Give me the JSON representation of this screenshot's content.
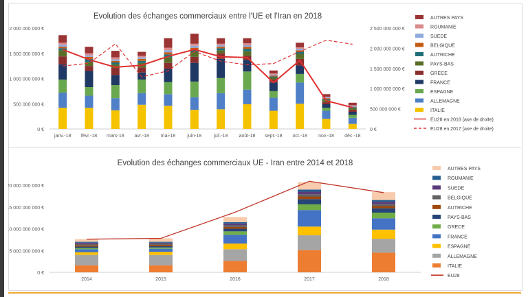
{
  "chart_data": [
    {
      "type": "bar",
      "stacked": true,
      "title": "Evolution des échanges commerciaux entre l'UE et l'Iran en 2018",
      "categories": [
        "janv.-18",
        "févr.-18",
        "mars-18",
        "avr.-18",
        "mai-18",
        "juin-18",
        "juil.-18",
        "août-18",
        "sept.-18",
        "oct.-18",
        "nov.-18",
        "déc.-18"
      ],
      "ylim": [
        0,
        2000000000
      ],
      "y2lim": [
        0,
        2500000000
      ],
      "yticks": [
        "0 €",
        "500 000 000 €",
        "1 000 000 000 €",
        "1 500 000 000 €",
        "2 000 000 000 €"
      ],
      "y2ticks": [
        "0 €",
        "500 000 000 €",
        "1 000 000 000 €",
        "1 500 000 000 €",
        "2 000 000 000 €",
        "2 500 000 000 €"
      ],
      "legend_position": "right",
      "series": [
        {
          "name": "ITALIE",
          "color": "#f5c200",
          "values": [
            420,
            420,
            370,
            480,
            460,
            380,
            390,
            490,
            360,
            500,
            200,
            100
          ]
        },
        {
          "name": "ALLEMAGNE",
          "color": "#4f7fc6",
          "values": [
            300,
            240,
            240,
            230,
            230,
            250,
            320,
            290,
            260,
            420,
            160,
            120
          ]
        },
        {
          "name": "ESPAGNE",
          "color": "#6aa84f",
          "values": [
            260,
            170,
            260,
            270,
            240,
            310,
            300,
            360,
            130,
            170,
            60,
            60
          ]
        },
        {
          "name": "FRANCE",
          "color": "#1f3864",
          "values": [
            300,
            320,
            200,
            140,
            260,
            370,
            380,
            230,
            170,
            170,
            70,
            60
          ]
        },
        {
          "name": "GRECE",
          "color": "#8b2e2e",
          "values": [
            160,
            100,
            140,
            100,
            120,
            120,
            110,
            80,
            60,
            130,
            40,
            40
          ]
        },
        {
          "name": "PAYS-BAS",
          "color": "#5a6e2a",
          "values": [
            120,
            80,
            70,
            90,
            110,
            100,
            60,
            90,
            40,
            100,
            40,
            30
          ]
        },
        {
          "name": "AUTRICHE",
          "color": "#1f6f7a",
          "values": [
            40,
            60,
            40,
            40,
            60,
            40,
            40,
            50,
            20,
            40,
            20,
            20
          ]
        },
        {
          "name": "BELGIQUE",
          "color": "#c55a11",
          "values": [
            30,
            40,
            30,
            40,
            40,
            40,
            30,
            40,
            20,
            30,
            20,
            10
          ]
        },
        {
          "name": "SUEDE",
          "color": "#8faadc",
          "values": [
            40,
            30,
            30,
            30,
            40,
            40,
            30,
            30,
            20,
            30,
            20,
            20
          ]
        },
        {
          "name": "ROUMANIE",
          "color": "#d98c8c",
          "values": [
            40,
            40,
            40,
            30,
            50,
            40,
            30,
            40,
            20,
            30,
            10,
            10
          ]
        },
        {
          "name": "AUTRES PAYS",
          "color": "#9b3434",
          "values": [
            150,
            130,
            130,
            80,
            190,
            200,
            110,
            100,
            60,
            90,
            50,
            50
          ]
        }
      ],
      "series_unit": "millions €",
      "lines": [
        {
          "name": "EU28 en 2018 (axe de droite)",
          "color": "#e03030",
          "dash": false,
          "axis": "right",
          "values": [
            1970,
            1720,
            1530,
            1580,
            1800,
            1970,
            1790,
            1770,
            1150,
            1700,
            700,
            530
          ]
        },
        {
          "name": "EU28 en 2017 (axe de droite)",
          "color": "#e03030",
          "dash": true,
          "axis": "right",
          "values": [
            1560,
            1630,
            2110,
            1290,
            1440,
            1920,
            1680,
            1590,
            1620,
            1920,
            2200,
            2100
          ]
        }
      ]
    },
    {
      "type": "bar",
      "stacked": true,
      "title": "Evolution des échanges commerciaux UE - Iran entre 2014 et 2018",
      "categories": [
        "2014",
        "2015",
        "2016",
        "2017",
        "2018"
      ],
      "ylim": [
        0,
        20000000000
      ],
      "yticks": [
        "0 €",
        "5 000 000 000 €",
        "10 000 000 000 €",
        "15 000 000 000 €",
        "20 000 000 000 €"
      ],
      "legend_position": "right",
      "series": [
        {
          "name": "ITALIE",
          "color": "#ed7d31",
          "values": [
            1.6,
            1.6,
            2.6,
            5.1,
            4.5
          ]
        },
        {
          "name": "ALLEMAGNE",
          "color": "#a5a5a5",
          "values": [
            2.4,
            2.4,
            2.7,
            3.4,
            3.2
          ]
        },
        {
          "name": "ESPAGNE",
          "color": "#ffc000",
          "values": [
            0.6,
            0.7,
            1.3,
            2.0,
            2.1
          ]
        },
        {
          "name": "FRANCE",
          "color": "#4472c4",
          "values": [
            0.7,
            0.7,
            2.0,
            3.8,
            2.6
          ]
        },
        {
          "name": "GRECE",
          "color": "#70ad47",
          "values": [
            0.3,
            0.3,
            0.8,
            1.3,
            1.3
          ]
        },
        {
          "name": "PAYS-BAS",
          "color": "#264478",
          "values": [
            0.3,
            0.3,
            0.6,
            1.2,
            1.0
          ]
        },
        {
          "name": "AUTRICHE",
          "color": "#9e480e",
          "values": [
            0.3,
            0.3,
            0.4,
            0.6,
            0.5
          ]
        },
        {
          "name": "BELGIQUE",
          "color": "#636363",
          "values": [
            0.3,
            0.3,
            0.4,
            0.5,
            0.5
          ]
        },
        {
          "name": "SUEDE",
          "color": "#5b3b7a",
          "values": [
            0.3,
            0.2,
            0.4,
            0.6,
            0.5
          ]
        },
        {
          "name": "ROUMANIE",
          "color": "#255e91",
          "values": [
            0.2,
            0.2,
            0.3,
            0.5,
            0.4
          ]
        },
        {
          "name": "AUTRES PAYS",
          "color": "#f8cbad",
          "values": [
            0.6,
            0.8,
            1.2,
            1.7,
            1.8
          ]
        }
      ],
      "series_unit": "milliards €",
      "lines": [
        {
          "name": "EU28",
          "color": "#c0392b",
          "dash": false,
          "axis": "left",
          "values": [
            7.6,
            7.8,
            13.8,
            20.9,
            18.3
          ]
        }
      ]
    }
  ]
}
